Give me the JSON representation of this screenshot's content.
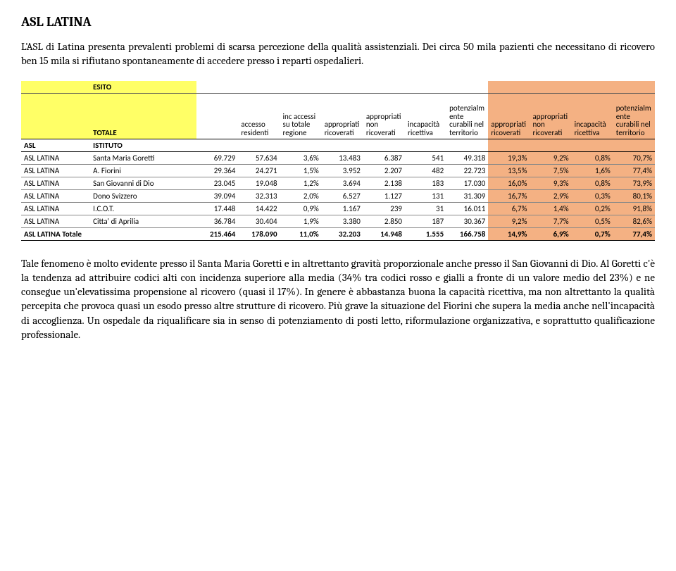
{
  "title": "ASL LATINA",
  "intro": "L'ASL di Latina presenta prevalenti problemi di scarsa percezione della qualità assistenziali. Dei circa 50 mila pazienti che necessitano di ricovero ben 15 mila si rifiutano spontaneamente di accedere presso i reparti ospedalieri.",
  "conclusion": "Tale fenomeno è molto evidente presso il Santa Maria Goretti e in altrettanto gravità proporzionale anche presso il San Giovanni di Dio. Al Goretti c'è la tendenza ad attribuire codici alti con incidenza superiore alla media (34% tra codici rosso e gialli a fronte di un valore medio del 23%) e ne consegue un'elevatissima propensione al ricovero (quasi il 17%). In genere è abbastanza buona la capacità ricettiva, ma non altrettanto la qualità percepita che provoca quasi un esodo presso altre strutture di ricovero. Più grave la situazione del Fiorini che supera la media anche nell'incapacità di accoglienza. Un ospedale da riqualificare sia in senso di potenziamento di posti letto, riformulazione organizzativa, e soprattutto qualificazione professionale.",
  "table": {
    "header_labels": {
      "esito": "ESITO",
      "totale": "TOTALE",
      "asl": "ASL",
      "istituto": "ISTITUTO"
    },
    "col_headers": [
      "accesso residenti",
      "inc accessi su totale regione",
      "appropriati ricoverati",
      "appropriati non ricoverati",
      "incapacità ricettiva",
      "potenzialmente curabili nel territorio",
      "appropriati ricoverati",
      "appropriati non ricoverati",
      "incapacità ricettiva",
      "potenzialmente curabili nel territorio"
    ],
    "orange_col_indices": [
      7,
      8,
      9,
      10
    ],
    "rows": [
      {
        "asl": "ASL LATINA",
        "ist": "Santa Maria Goretti",
        "cells": [
          "69.729",
          "57.634",
          "3,6%",
          "13.483",
          "6.387",
          "541",
          "49.318",
          "19,3%",
          "9,2%",
          "0,8%",
          "70,7%"
        ]
      },
      {
        "asl": "ASL LATINA",
        "ist": "A. Fiorini",
        "cells": [
          "29.364",
          "24.271",
          "1,5%",
          "3.952",
          "2.207",
          "482",
          "22.723",
          "13,5%",
          "7,5%",
          "1,6%",
          "77,4%"
        ]
      },
      {
        "asl": "ASL LATINA",
        "ist": "San Giovanni di Dio",
        "cells": [
          "23.045",
          "19.048",
          "1,2%",
          "3.694",
          "2.138",
          "183",
          "17.030",
          "16,0%",
          "9,3%",
          "0,8%",
          "73,9%"
        ]
      },
      {
        "asl": "ASL LATINA",
        "ist": "Dono Svizzero",
        "cells": [
          "39.094",
          "32.313",
          "2,0%",
          "6.527",
          "1.127",
          "131",
          "31.309",
          "16,7%",
          "2,9%",
          "0,3%",
          "80,1%"
        ]
      },
      {
        "asl": "ASL LATINA",
        "ist": "I.C.O.T.",
        "cells": [
          "17.448",
          "14.422",
          "0,9%",
          "1.167",
          "239",
          "31",
          "16.011",
          "6,7%",
          "1,4%",
          "0,2%",
          "91,8%"
        ]
      },
      {
        "asl": "ASL LATINA",
        "ist": "Citta' di Aprilia",
        "cells": [
          "36.784",
          "30.404",
          "1,9%",
          "3.380",
          "2.850",
          "187",
          "30.367",
          "9,2%",
          "7,7%",
          "0,5%",
          "82,6%"
        ]
      }
    ],
    "total_row": {
      "label": "ASL LATINA Totale",
      "cells": [
        "215.464",
        "178.090",
        "11,0%",
        "32.203",
        "14.948",
        "1.555",
        "166.758",
        "14,9%",
        "6,9%",
        "0,7%",
        "77,4%"
      ]
    },
    "colors": {
      "yellow": "#ffff66",
      "orange": "#f4b183",
      "border_thin": "#888888",
      "border_thick": "#000000",
      "background": "#ffffff"
    }
  }
}
